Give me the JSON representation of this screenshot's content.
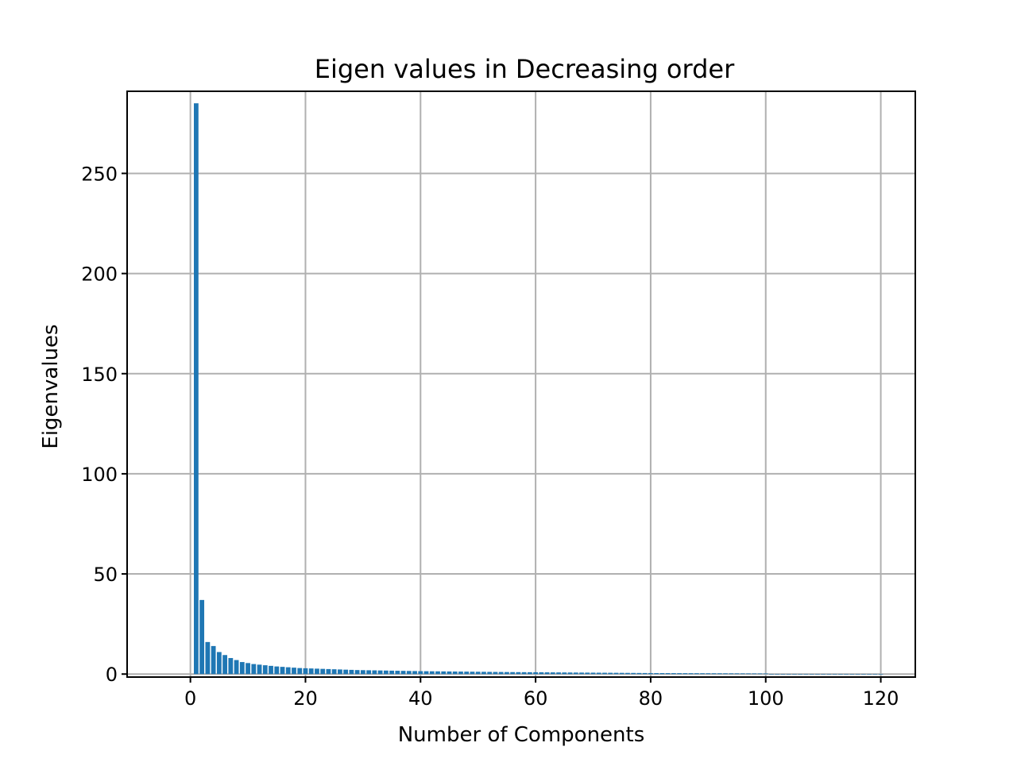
{
  "chart_data": {
    "type": "bar",
    "title": "Eigen values in Decreasing order",
    "xlabel": "Number of Components",
    "ylabel": "Eigenvalues",
    "xlim": [
      -11,
      126
    ],
    "ylim": [
      -1.5,
      291
    ],
    "xticks": [
      0,
      20,
      40,
      60,
      80,
      100,
      120
    ],
    "yticks": [
      0,
      50,
      100,
      150,
      200,
      250
    ],
    "grid": true,
    "bar_color": "#1f77b4",
    "x": [
      1,
      2,
      3,
      4,
      5,
      6,
      7,
      8,
      9,
      10,
      11,
      12,
      13,
      14,
      15,
      16,
      17,
      18,
      19,
      20,
      21,
      22,
      23,
      24,
      25,
      26,
      27,
      28,
      29,
      30,
      31,
      32,
      33,
      34,
      35,
      36,
      37,
      38,
      39,
      40,
      41,
      42,
      43,
      44,
      45,
      46,
      47,
      48,
      49,
      50,
      51,
      52,
      53,
      54,
      55,
      56,
      57,
      58,
      59,
      60,
      61,
      62,
      63,
      64,
      65,
      66,
      67,
      68,
      69,
      70,
      71,
      72,
      73,
      74,
      75,
      76,
      77,
      78,
      79,
      80,
      81,
      82,
      83,
      84,
      85,
      86,
      87,
      88,
      89,
      90,
      91,
      92,
      93,
      94,
      95,
      96,
      97,
      98,
      99,
      100,
      101,
      102,
      103,
      104,
      105,
      106,
      107,
      108,
      109,
      110,
      111,
      112,
      113,
      114,
      115,
      116,
      117,
      118,
      119,
      120
    ],
    "values": [
      285,
      37,
      16,
      14,
      11,
      9.5,
      8,
      7,
      6,
      5.5,
      5,
      4.7,
      4.4,
      4.1,
      3.8,
      3.6,
      3.4,
      3.2,
      3.0,
      2.9,
      2.8,
      2.7,
      2.6,
      2.5,
      2.4,
      2.3,
      2.2,
      2.1,
      2.0,
      1.95,
      1.9,
      1.85,
      1.8,
      1.75,
      1.7,
      1.65,
      1.6,
      1.55,
      1.5,
      1.45,
      1.42,
      1.39,
      1.36,
      1.33,
      1.3,
      1.27,
      1.24,
      1.21,
      1.18,
      1.15,
      1.12,
      1.09,
      1.06,
      1.03,
      1.0,
      0.98,
      0.96,
      0.94,
      0.92,
      0.9,
      0.88,
      0.86,
      0.84,
      0.82,
      0.8,
      0.78,
      0.76,
      0.74,
      0.72,
      0.7,
      0.68,
      0.66,
      0.64,
      0.62,
      0.6,
      0.58,
      0.56,
      0.54,
      0.52,
      0.5,
      0.49,
      0.48,
      0.47,
      0.46,
      0.45,
      0.44,
      0.43,
      0.42,
      0.41,
      0.4,
      0.39,
      0.38,
      0.37,
      0.36,
      0.35,
      0.34,
      0.33,
      0.32,
      0.31,
      0.3,
      0.05,
      0.05,
      0.05,
      0.05,
      0.05,
      0.05,
      0.05,
      0.05,
      0.05,
      0.05,
      0.05,
      0.05,
      0.05,
      0.05,
      0.05,
      0.05,
      0.05,
      0.05,
      0.05,
      0.05
    ]
  }
}
